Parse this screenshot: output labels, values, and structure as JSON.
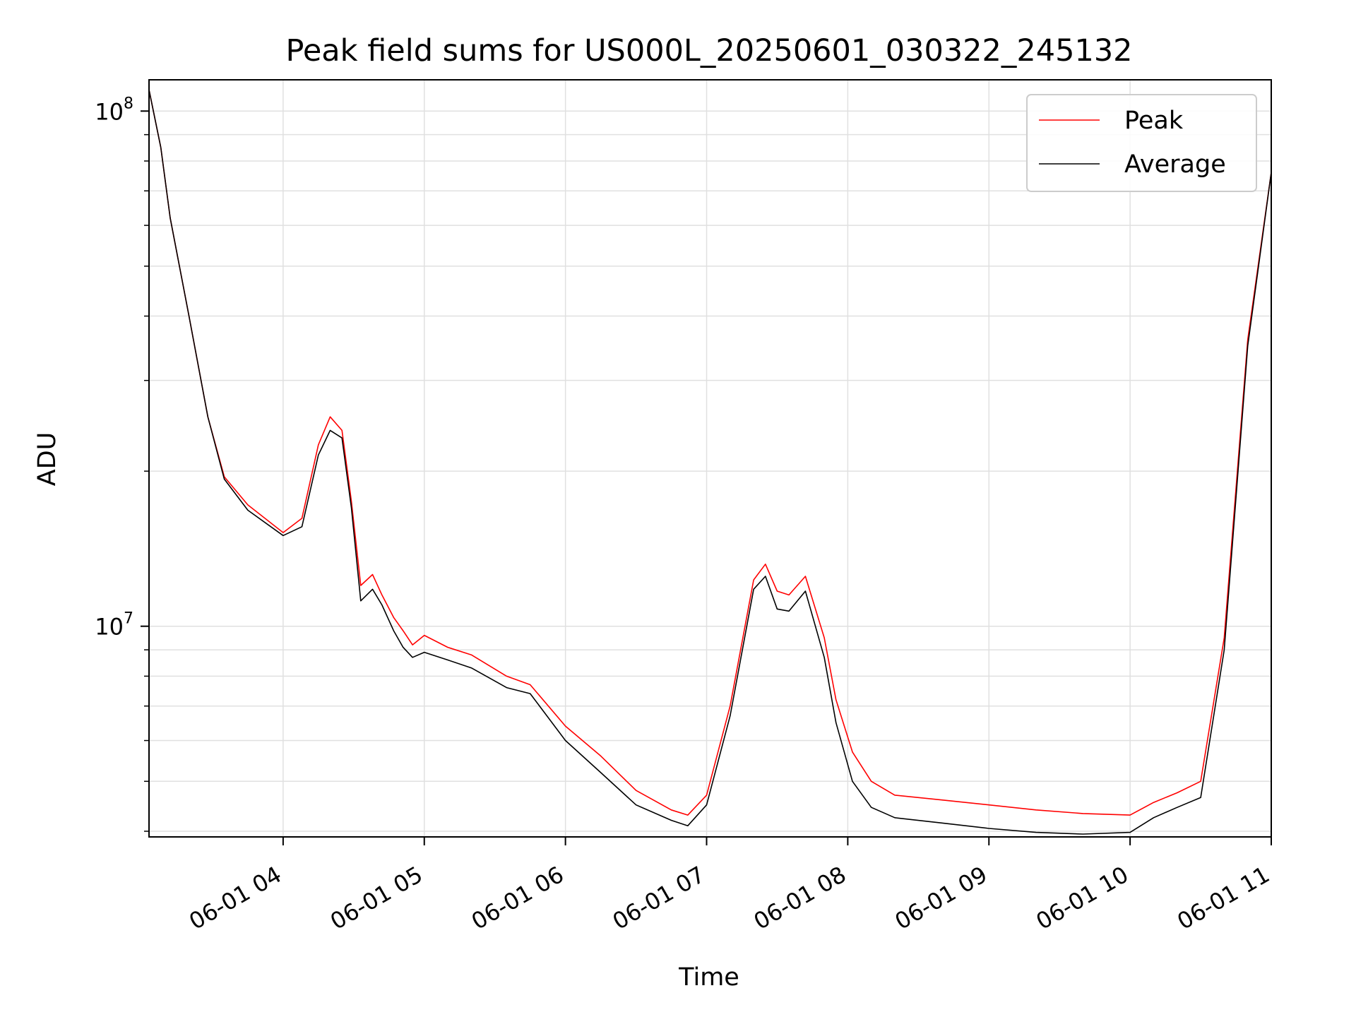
{
  "chart_data": {
    "type": "line",
    "title": "Peak field sums for US000L_20250601_030322_245132",
    "xlabel": "Time",
    "ylabel": "ADU",
    "yscale": "log",
    "ylim": [
      3900000,
      115000000
    ],
    "xlim": [
      "06-01 03:03",
      "06-01 11:00"
    ],
    "x_ticks": [
      "06-01 04",
      "06-01 05",
      "06-01 06",
      "06-01 07",
      "06-01 08",
      "06-01 09",
      "06-01 10",
      "06-01 11"
    ],
    "y_ticks": [
      {
        "label_base": "10",
        "label_exp": "7",
        "value": 10000000
      },
      {
        "label_base": "10",
        "label_exp": "8",
        "value": 100000000
      }
    ],
    "grid": true,
    "legend_position": "top-right",
    "series": [
      {
        "name": "Peak",
        "color": "#ff0000",
        "x": [
          "06-01 03:03",
          "06-01 03:08",
          "06-01 03:12",
          "06-01 03:20",
          "06-01 03:28",
          "06-01 03:35",
          "06-01 03:45",
          "06-01 04:00",
          "06-01 04:08",
          "06-01 04:15",
          "06-01 04:20",
          "06-01 04:25",
          "06-01 04:29",
          "06-01 04:33",
          "06-01 04:38",
          "06-01 04:42",
          "06-01 04:47",
          "06-01 04:51",
          "06-01 04:55",
          "06-01 05:00",
          "06-01 05:10",
          "06-01 05:20",
          "06-01 05:35",
          "06-01 05:45",
          "06-01 06:00",
          "06-01 06:15",
          "06-01 06:30",
          "06-01 06:45",
          "06-01 06:52",
          "06-01 07:00",
          "06-01 07:10",
          "06-01 07:20",
          "06-01 07:25",
          "06-01 07:30",
          "06-01 07:35",
          "06-01 07:42",
          "06-01 07:50",
          "06-01 07:55",
          "06-01 08:02",
          "06-01 08:10",
          "06-01 08:20",
          "06-01 08:40",
          "06-01 09:00",
          "06-01 09:20",
          "06-01 09:40",
          "06-01 10:00",
          "06-01 10:10",
          "06-01 10:20",
          "06-01 10:30",
          "06-01 10:40",
          "06-01 10:50",
          "06-01 11:00"
        ],
        "y": [
          110000000,
          85000000,
          62000000,
          40000000,
          25500000,
          19500000,
          17200000,
          15200000,
          16200000,
          22500000,
          25500000,
          24000000,
          17500000,
          12000000,
          12600000,
          11500000,
          10400000,
          9800000,
          9200000,
          9600000,
          9100000,
          8800000,
          8000000,
          7700000,
          6400000,
          5600000,
          4800000,
          4400000,
          4300000,
          4700000,
          7000000,
          12300000,
          13200000,
          11700000,
          11500000,
          12500000,
          9500000,
          7200000,
          5700000,
          5000000,
          4700000,
          4600000,
          4500000,
          4400000,
          4330000,
          4300000,
          4550000,
          4750000,
          5000000,
          9500000,
          36000000,
          76000000
        ]
      },
      {
        "name": "Average",
        "color": "#000000",
        "x": [
          "06-01 03:03",
          "06-01 03:08",
          "06-01 03:12",
          "06-01 03:20",
          "06-01 03:28",
          "06-01 03:35",
          "06-01 03:45",
          "06-01 04:00",
          "06-01 04:08",
          "06-01 04:15",
          "06-01 04:20",
          "06-01 04:25",
          "06-01 04:29",
          "06-01 04:33",
          "06-01 04:38",
          "06-01 04:42",
          "06-01 04:47",
          "06-01 04:51",
          "06-01 04:55",
          "06-01 05:00",
          "06-01 05:10",
          "06-01 05:20",
          "06-01 05:35",
          "06-01 05:45",
          "06-01 06:00",
          "06-01 06:15",
          "06-01 06:30",
          "06-01 06:45",
          "06-01 06:52",
          "06-01 07:00",
          "06-01 07:10",
          "06-01 07:20",
          "06-01 07:25",
          "06-01 07:30",
          "06-01 07:35",
          "06-01 07:42",
          "06-01 07:50",
          "06-01 07:55",
          "06-01 08:02",
          "06-01 08:10",
          "06-01 08:20",
          "06-01 08:40",
          "06-01 09:00",
          "06-01 09:20",
          "06-01 09:40",
          "06-01 10:00",
          "06-01 10:10",
          "06-01 10:20",
          "06-01 10:30",
          "06-01 10:40",
          "06-01 10:50",
          "06-01 11:00"
        ],
        "y": [
          110000000,
          85000000,
          62000000,
          40000000,
          25500000,
          19300000,
          16800000,
          15000000,
          15600000,
          21500000,
          24000000,
          23200000,
          17000000,
          11200000,
          11800000,
          11000000,
          9800000,
          9100000,
          8700000,
          8900000,
          8600000,
          8300000,
          7600000,
          7400000,
          6000000,
          5200000,
          4500000,
          4200000,
          4100000,
          4500000,
          6700000,
          11800000,
          12500000,
          10800000,
          10700000,
          11700000,
          8700000,
          6500000,
          5000000,
          4450000,
          4250000,
          4150000,
          4050000,
          3980000,
          3950000,
          3980000,
          4250000,
          4450000,
          4650000,
          9000000,
          35000000,
          76000000
        ]
      }
    ]
  }
}
